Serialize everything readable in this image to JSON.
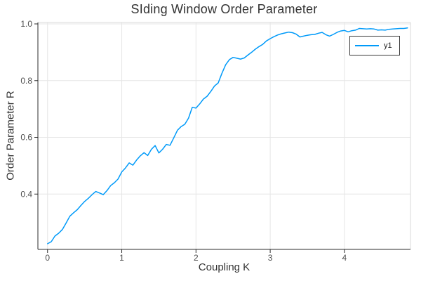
{
  "figure": {
    "background": "#ffffff"
  },
  "chart_data": {
    "type": "line",
    "title": "SIding Window Order Parameter",
    "xlabel": "Coupling K",
    "ylabel": "Order Parameter R",
    "xlim": [
      -0.13,
      4.89
    ],
    "ylim": [
      0.205,
      1.005
    ],
    "x_ticks": [
      0,
      1,
      2,
      3,
      4
    ],
    "x_tick_labels": [
      "0",
      "1",
      "2",
      "3",
      "4"
    ],
    "y_ticks": [
      0.4,
      0.6,
      0.8,
      1.0
    ],
    "y_tick_labels": [
      "0.4",
      "0.6",
      "0.8",
      "1.0"
    ],
    "grid": true,
    "legend": {
      "position": "top-right",
      "entries": [
        {
          "label": "y1",
          "color": "#009af9"
        }
      ]
    },
    "x": [
      0.0,
      0.05,
      0.1,
      0.15,
      0.2,
      0.25,
      0.3,
      0.35,
      0.4,
      0.45,
      0.5,
      0.55,
      0.6,
      0.65,
      0.7,
      0.75,
      0.8,
      0.85,
      0.9,
      0.95,
      1.0,
      1.05,
      1.1,
      1.15,
      1.2,
      1.25,
      1.3,
      1.35,
      1.4,
      1.45,
      1.5,
      1.55,
      1.6,
      1.65,
      1.7,
      1.75,
      1.8,
      1.85,
      1.9,
      1.95,
      2.0,
      2.05,
      2.1,
      2.15,
      2.2,
      2.25,
      2.3,
      2.35,
      2.4,
      2.45,
      2.5,
      2.55,
      2.6,
      2.65,
      2.7,
      2.75,
      2.8,
      2.85,
      2.9,
      2.95,
      3.0,
      3.05,
      3.1,
      3.15,
      3.2,
      3.25,
      3.3,
      3.35,
      3.4,
      3.45,
      3.5,
      3.55,
      3.6,
      3.65,
      3.7,
      3.75,
      3.8,
      3.85,
      3.9,
      3.95,
      4.0,
      4.05,
      4.1,
      4.15,
      4.2,
      4.25,
      4.3,
      4.35,
      4.4,
      4.45,
      4.5,
      4.55,
      4.6,
      4.65,
      4.7,
      4.75,
      4.8,
      4.85
    ],
    "series": [
      {
        "name": "y1",
        "color": "#009af9",
        "line_width": 1.5,
        "values": [
          0.225,
          0.232,
          0.252,
          0.262,
          0.275,
          0.298,
          0.322,
          0.334,
          0.345,
          0.36,
          0.374,
          0.385,
          0.398,
          0.409,
          0.404,
          0.398,
          0.412,
          0.43,
          0.44,
          0.453,
          0.478,
          0.492,
          0.51,
          0.502,
          0.52,
          0.535,
          0.546,
          0.536,
          0.558,
          0.571,
          0.545,
          0.558,
          0.575,
          0.572,
          0.598,
          0.625,
          0.638,
          0.646,
          0.668,
          0.706,
          0.703,
          0.718,
          0.735,
          0.745,
          0.762,
          0.781,
          0.792,
          0.826,
          0.856,
          0.874,
          0.882,
          0.879,
          0.876,
          0.88,
          0.89,
          0.9,
          0.911,
          0.92,
          0.928,
          0.94,
          0.948,
          0.955,
          0.961,
          0.965,
          0.968,
          0.971,
          0.969,
          0.964,
          0.954,
          0.957,
          0.96,
          0.962,
          0.963,
          0.967,
          0.97,
          0.962,
          0.957,
          0.963,
          0.97,
          0.975,
          0.977,
          0.972,
          0.976,
          0.978,
          0.984,
          0.983,
          0.982,
          0.983,
          0.982,
          0.978,
          0.979,
          0.978,
          0.981,
          0.982,
          0.983,
          0.984,
          0.984,
          0.986
        ]
      }
    ],
    "colors": {
      "grid": "#e6e6e6",
      "frame_light": "#d9d9d9",
      "axis": "#2b2b2b",
      "tick_label": "#4e4e4e",
      "text": "#333333"
    }
  }
}
